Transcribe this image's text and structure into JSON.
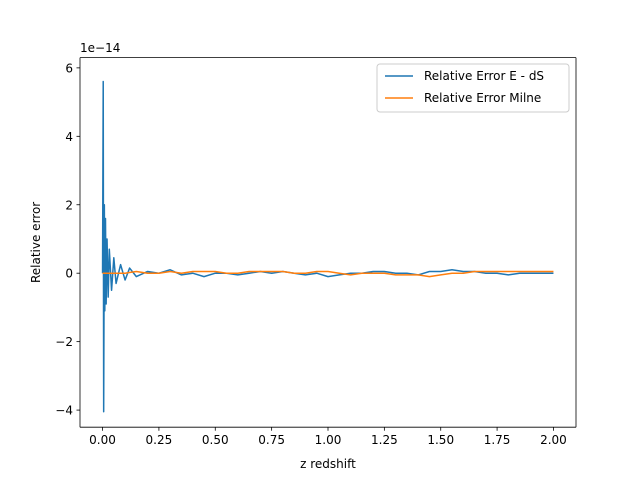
{
  "chart_data": {
    "type": "line",
    "title": "",
    "xlabel": "z redshift",
    "ylabel": "Relative error",
    "offset_text": "1e−14",
    "xlim": [
      -0.1,
      2.1
    ],
    "ylim": [
      -4.5,
      6.3
    ],
    "x_ticks": [
      0.0,
      0.25,
      0.5,
      0.75,
      1.0,
      1.25,
      1.5,
      1.75,
      2.0
    ],
    "x_tick_labels": [
      "0.00",
      "0.25",
      "0.50",
      "0.75",
      "1.00",
      "1.25",
      "1.50",
      "1.75",
      "2.00"
    ],
    "y_ticks": [
      -4,
      -2,
      0,
      2,
      4,
      6
    ],
    "y_tick_labels": [
      "−4",
      "−2",
      "0",
      "2",
      "4",
      "6"
    ],
    "grid": false,
    "legend_position": "top-right",
    "series": [
      {
        "name": "Relative Error E - dS",
        "color": "#1f77b4",
        "x": [
          0.0,
          0.003,
          0.005,
          0.008,
          0.01,
          0.013,
          0.016,
          0.02,
          0.025,
          0.03,
          0.04,
          0.05,
          0.06,
          0.08,
          0.1,
          0.12,
          0.15,
          0.2,
          0.25,
          0.3,
          0.35,
          0.4,
          0.45,
          0.5,
          0.55,
          0.6,
          0.65,
          0.7,
          0.75,
          0.8,
          0.85,
          0.9,
          0.95,
          1.0,
          1.05,
          1.1,
          1.15,
          1.2,
          1.25,
          1.3,
          1.35,
          1.4,
          1.45,
          1.5,
          1.55,
          1.6,
          1.65,
          1.7,
          1.75,
          1.8,
          1.85,
          1.9,
          1.95,
          2.0
        ],
        "y": [
          0.0,
          5.6,
          -4.05,
          2.0,
          -1.1,
          1.6,
          -0.9,
          1.0,
          -0.7,
          0.7,
          -0.5,
          0.45,
          -0.3,
          0.25,
          -0.2,
          0.15,
          -0.1,
          0.05,
          0.0,
          0.1,
          -0.05,
          0.0,
          -0.1,
          0.0,
          0.0,
          -0.05,
          0.0,
          0.05,
          0.0,
          0.05,
          0.0,
          -0.05,
          0.0,
          -0.1,
          -0.05,
          0.0,
          0.0,
          0.05,
          0.05,
          0.0,
          0.0,
          -0.05,
          0.05,
          0.05,
          0.1,
          0.05,
          0.05,
          0.0,
          0.0,
          -0.05,
          0.0,
          0.0,
          0.0,
          0.0
        ]
      },
      {
        "name": "Relative Error Milne",
        "color": "#ff7f0e",
        "x": [
          0.0,
          0.05,
          0.1,
          0.15,
          0.2,
          0.25,
          0.3,
          0.35,
          0.4,
          0.45,
          0.5,
          0.55,
          0.6,
          0.65,
          0.7,
          0.75,
          0.8,
          0.85,
          0.9,
          0.95,
          1.0,
          1.05,
          1.1,
          1.15,
          1.2,
          1.25,
          1.3,
          1.35,
          1.4,
          1.45,
          1.5,
          1.55,
          1.6,
          1.65,
          1.7,
          1.75,
          1.8,
          1.85,
          1.9,
          1.95,
          2.0
        ],
        "y": [
          0.0,
          0.0,
          0.0,
          0.05,
          0.0,
          0.0,
          0.05,
          0.0,
          0.05,
          0.05,
          0.05,
          0.0,
          0.0,
          0.05,
          0.05,
          0.05,
          0.05,
          0.0,
          0.0,
          0.05,
          0.05,
          0.0,
          -0.05,
          0.0,
          0.0,
          0.0,
          -0.05,
          -0.05,
          -0.05,
          -0.1,
          -0.05,
          0.0,
          0.0,
          0.05,
          0.05,
          0.05,
          0.05,
          0.05,
          0.05,
          0.05,
          0.05
        ]
      }
    ]
  }
}
